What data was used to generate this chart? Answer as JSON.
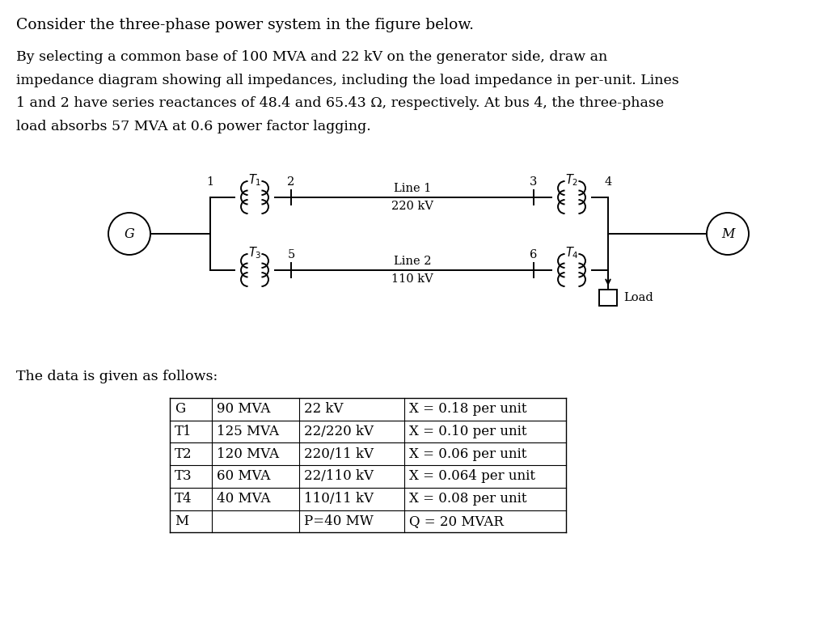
{
  "bg_color": "#ffffff",
  "text_color": "#000000",
  "title_line1": "Consider the three-phase power system in the figure below.",
  "para_lines": [
    "By selecting a common base of 100 MVA and 22 kV on the generator side, draw an",
    "impedance diagram showing all impedances, including the load impedance in per-unit. Lines",
    "1 and 2 have series reactances of 48.4 and 65.43 Ω, respectively. At bus 4, the three-phase",
    "load absorbs 57 MVA at 0.6 power factor lagging."
  ],
  "data_label": "The data is given as follows:",
  "table_rows": [
    [
      "G",
      "90 MVA",
      "22 kV",
      "X = 0.18 per unit"
    ],
    [
      "T1",
      "125 MVA",
      "22/220 kV",
      "X = 0.10 per unit"
    ],
    [
      "T2",
      "120 MVA",
      "220/11 kV",
      "X = 0.06 per unit"
    ],
    [
      "T3",
      "60 MVA",
      "22/110 kV",
      "X = 0.064 per unit"
    ],
    [
      "T4",
      "40 MVA",
      "110/11 kV",
      "X = 0.08 per unit"
    ],
    [
      "M",
      "",
      "P=40 MW",
      "Q = 20 MVAR"
    ]
  ],
  "font_size_title": 13.5,
  "font_size_body": 12.5,
  "font_size_diagram": 10.5,
  "font_size_table": 12.0
}
